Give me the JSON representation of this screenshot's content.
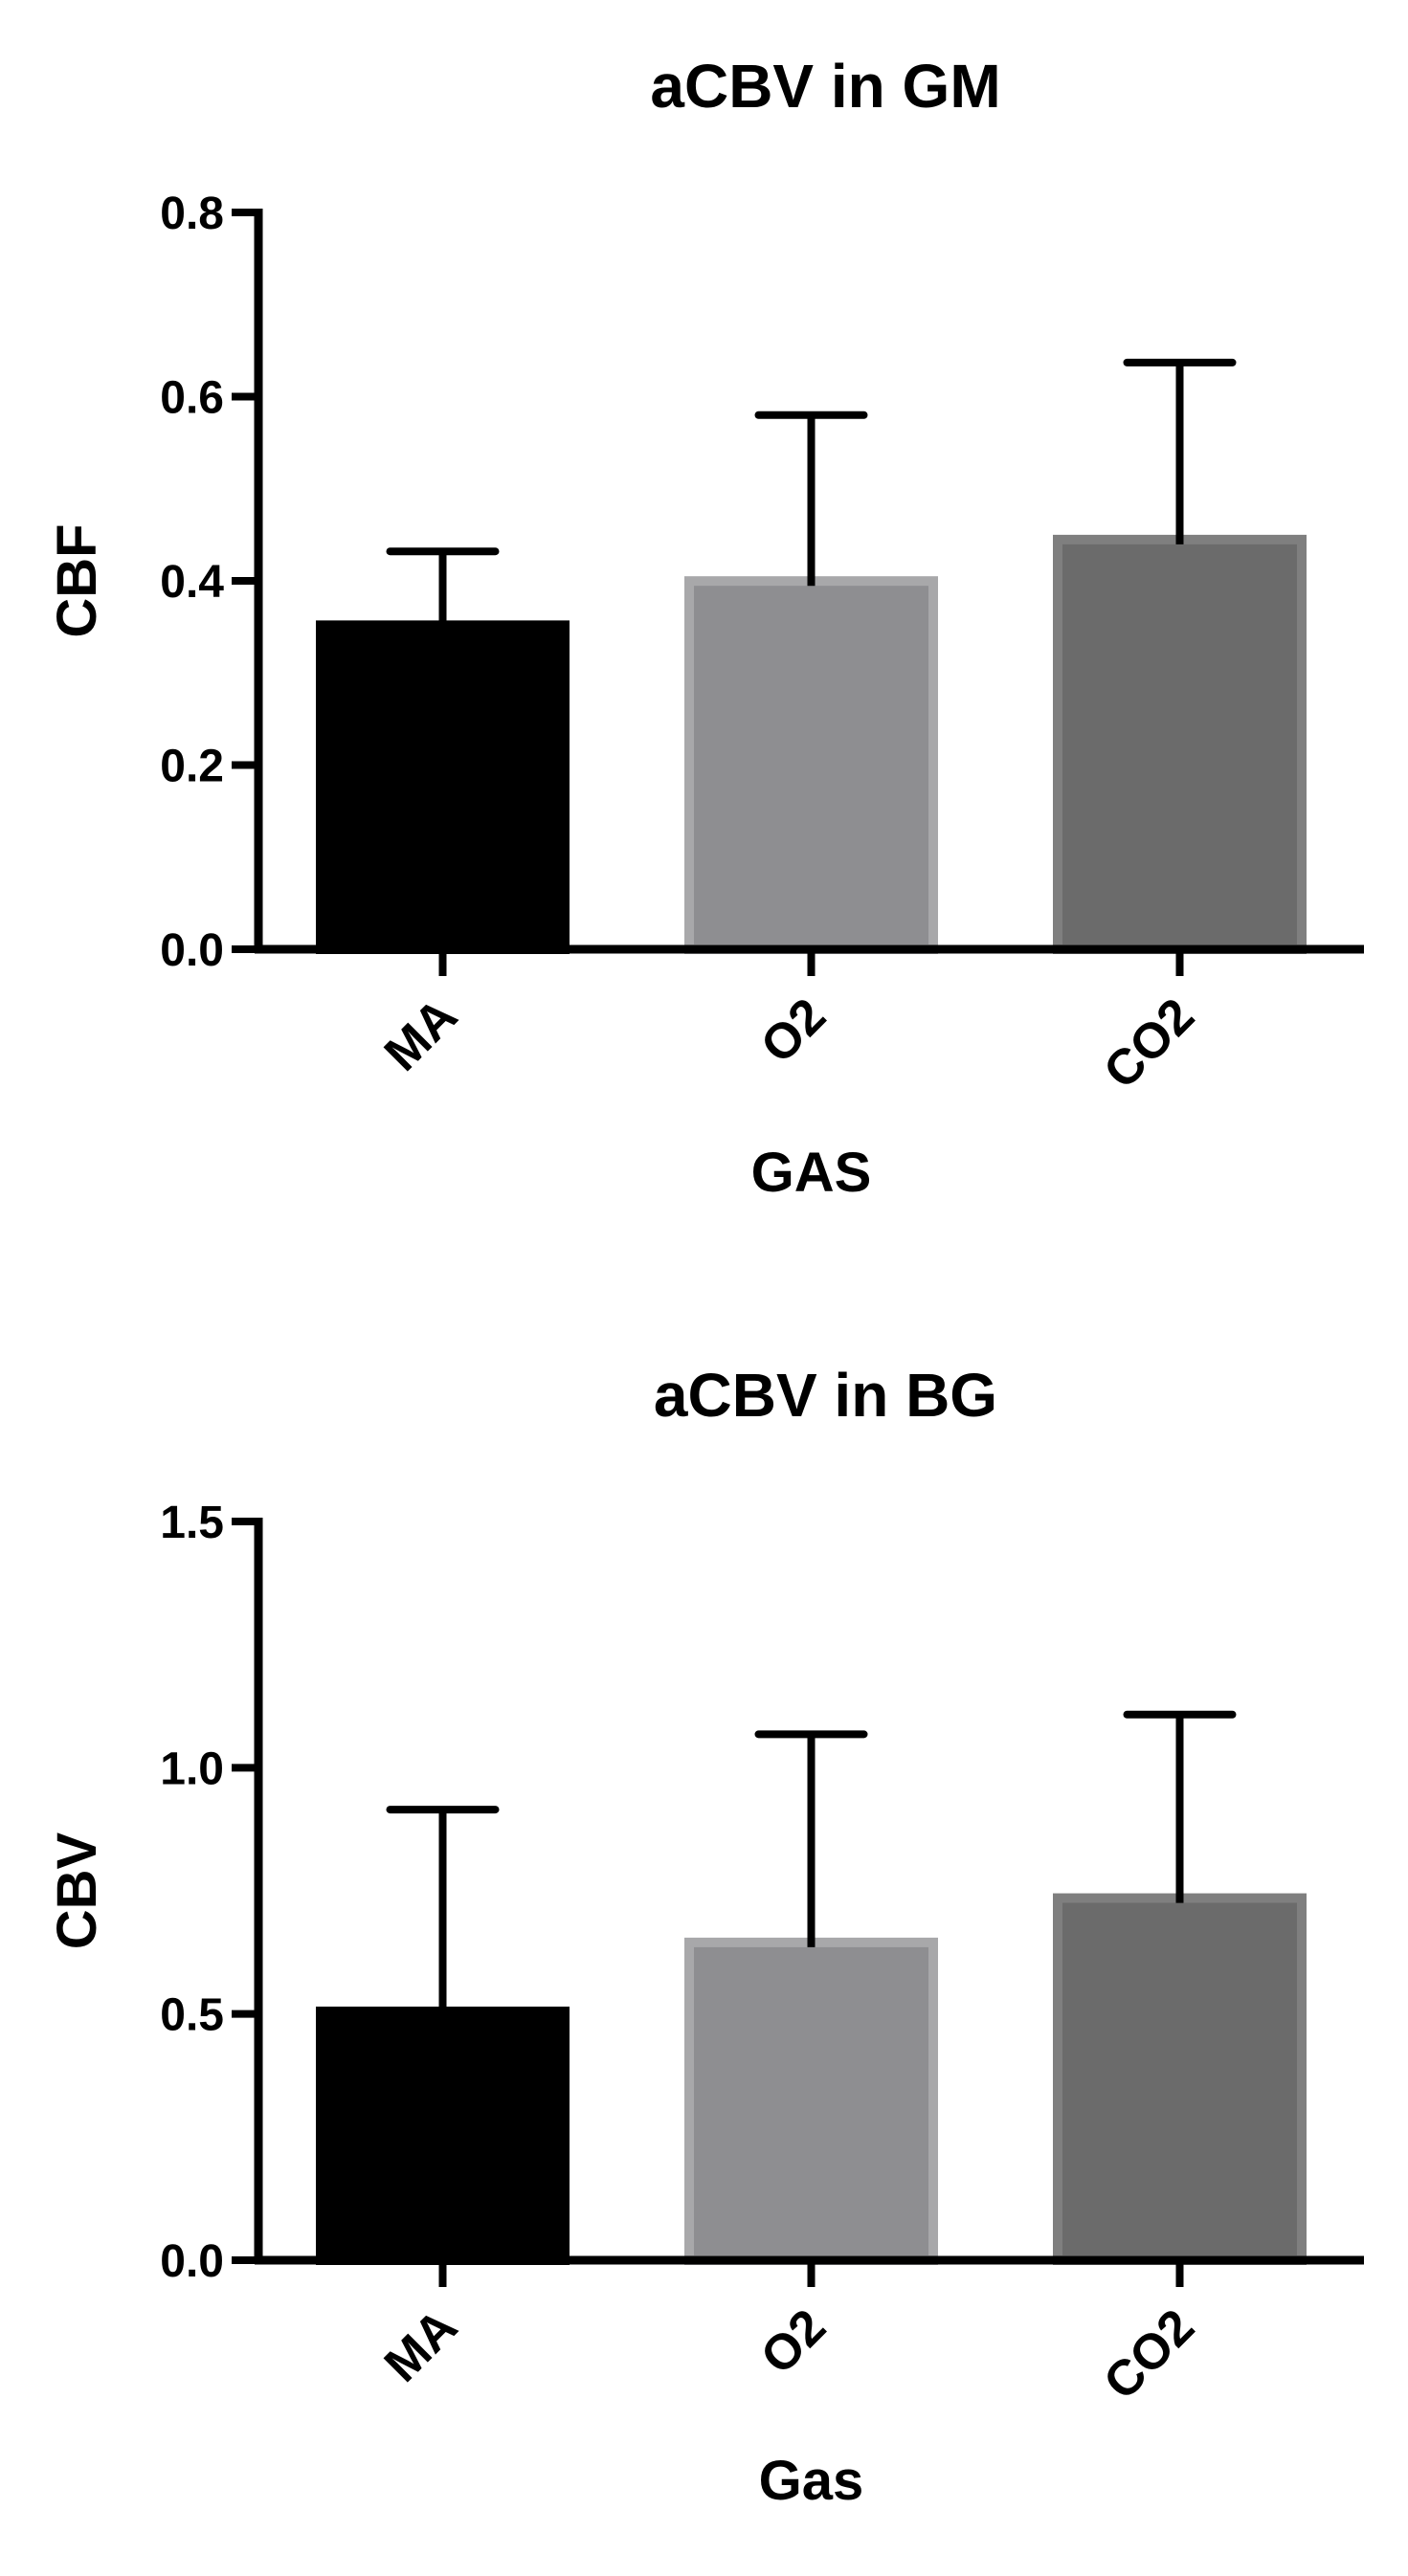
{
  "chart_data": [
    {
      "type": "bar",
      "title": "aCBV in GM",
      "xlabel": "GAS",
      "ylabel": "CBF",
      "categories": [
        "MA",
        "O2",
        "CO2"
      ],
      "values": [
        0.357,
        0.405,
        0.45
      ],
      "error_upper": [
        0.432,
        0.58,
        0.637
      ],
      "ylim": [
        0,
        0.8
      ],
      "yticks": [
        0.0,
        0.2,
        0.4,
        0.6,
        0.8
      ],
      "ytick_labels": [
        "0.0",
        "0.2",
        "0.4",
        "0.6",
        "0.8"
      ],
      "fill_colors": [
        "#000000",
        "#8e8e91",
        "#6b6b6b"
      ],
      "edge_colors": [
        "#000000",
        "#a8a8aa",
        "#7f7f7f"
      ],
      "grid": false,
      "legend": "none"
    },
    {
      "type": "bar",
      "title": "aCBV in BG",
      "xlabel": "Gas",
      "ylabel": "CBV",
      "categories": [
        "MA",
        "O2",
        "CO2"
      ],
      "values": [
        0.515,
        0.655,
        0.745
      ],
      "error_upper": [
        0.915,
        1.068,
        1.108
      ],
      "ylim": [
        0,
        1.5
      ],
      "yticks": [
        0.0,
        0.5,
        1.0,
        1.5
      ],
      "ytick_labels": [
        "0.0",
        "0.5",
        "1.0",
        "1.5"
      ],
      "fill_colors": [
        "#000000",
        "#8e8e91",
        "#6b6b6b"
      ],
      "edge_colors": [
        "#000000",
        "#a8a8aa",
        "#7f7f7f"
      ],
      "grid": false,
      "legend": "none"
    }
  ]
}
